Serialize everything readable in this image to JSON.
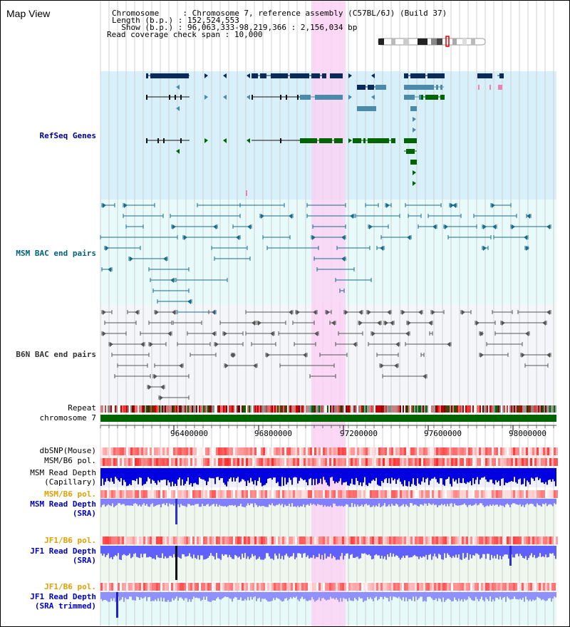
{
  "page": {
    "title": "Map View"
  },
  "header": {
    "chromosome_label": "Chromosome     ",
    "chromosome_value": ": Chromosome 7, reference assembly (C57BL/6J) (Build 37)",
    "length_label": "Length (b.p.) ",
    "length_value": ": 152,524,553",
    "show_label": "  Show (b.p.) ",
    "show_value": ": 96,063,333-98,219,366 : 2,156,034 bp",
    "span_label": "Read coverage check span ",
    "span_value": ": 10,000"
  },
  "tracks": {
    "refseq": "RefSeq Genes",
    "msm_bac": "MSM BAC end pairs",
    "b6n_bac": "B6N BAC end pairs",
    "repeat": "Repeat",
    "chromosome": "chromosome 7",
    "dbsnp": "dbSNP(Mouse)",
    "msm_b6_pol_1": "MSM/B6 pol.",
    "msm_read_depth_cap_1": "MSM Read Depth",
    "msm_read_depth_cap_2": "(Capillary)",
    "msm_b6_pol_2": "MSM/B6 pol.",
    "msm_read_depth_sra_1": "MSM Read Depth",
    "msm_read_depth_sra_2": "(SRA)",
    "jf1_b6_pol_1": "JF1/B6 pol.",
    "jf1_read_depth_sra_1": "JF1 Read Depth",
    "jf1_read_depth_sra_2": "(SRA)",
    "jf1_b6_pol_2": "JF1/B6 pol.",
    "jf1_read_depth_trim_1": "JF1 Read Depth",
    "jf1_read_depth_trim_2": "(SRA trimmed)"
  },
  "axis": {
    "ticks": [
      "96400000",
      "96800000",
      "97200000",
      "97600000",
      "98000000"
    ]
  },
  "colors": {
    "refseq_bg": "#d8f0fa",
    "msm_bg": "#e8fafa",
    "b6n_bg": "#f4f6fa",
    "highlight": "#fad2f5",
    "navy_gene": "#0a2a5a",
    "steel_gene": "#4a8aaa",
    "green_gene": "#006400",
    "chromosome_bar": "#006400"
  }
}
